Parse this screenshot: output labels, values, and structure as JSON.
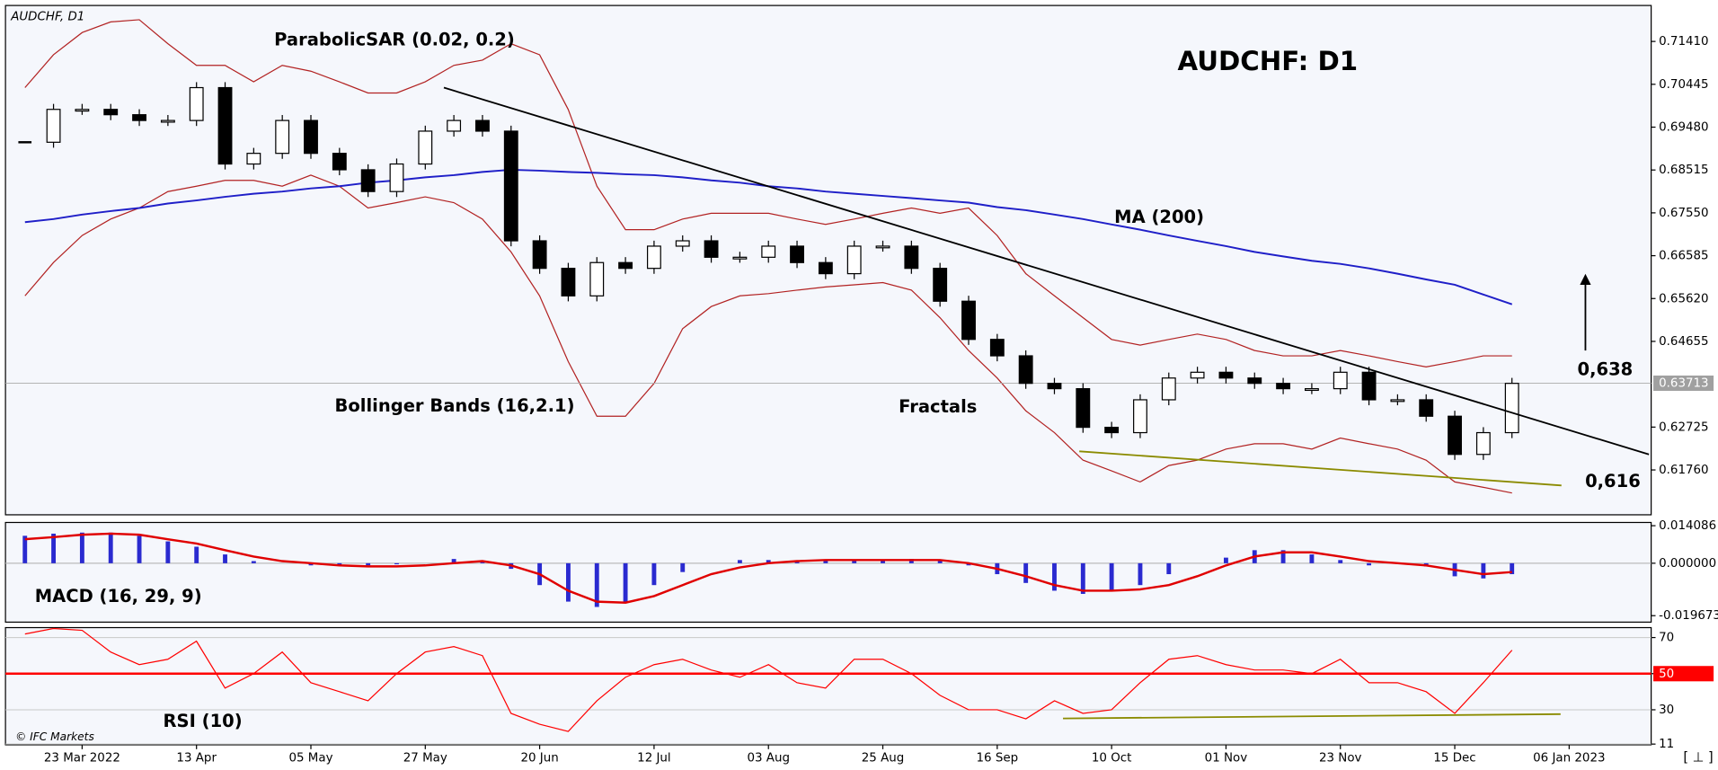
{
  "chart_data": [
    {
      "type": "candlestick",
      "symbol": "AUDCHF, D1",
      "title": "AUDCHF: D1",
      "categories": [
        null,
        null,
        "23 Mar 2022",
        null,
        null,
        null,
        "13 Apr",
        null,
        null,
        null,
        "05 May",
        null,
        null,
        null,
        "27 May",
        null,
        null,
        null,
        "20 Jun",
        null,
        null,
        null,
        "12 Jul",
        null,
        null,
        null,
        "03 Aug",
        null,
        null,
        null,
        "25 Aug",
        null,
        null,
        null,
        "16 Sep",
        null,
        null,
        null,
        "10 Oct",
        null,
        null,
        null,
        "01 Nov",
        null,
        null,
        null,
        "23 Nov",
        null,
        null,
        null,
        "15 Dec",
        null,
        null,
        null,
        "06 Jan 2023",
        null
      ],
      "close": [
        0.6914,
        0.6988,
        0.6988,
        0.6976,
        0.6963,
        0.6963,
        0.7037,
        0.6865,
        0.6889,
        0.6963,
        0.6889,
        0.6852,
        0.6803,
        0.6865,
        0.6939,
        0.6963,
        0.6939,
        0.6692,
        0.663,
        0.6568,
        0.6643,
        0.663,
        0.668,
        0.6692,
        0.6655,
        0.6655,
        0.668,
        0.6643,
        0.6618,
        0.668,
        0.668,
        0.663,
        0.6556,
        0.647,
        0.6433,
        0.6371,
        0.6359,
        0.6272,
        0.626,
        0.6334,
        0.6383,
        0.6396,
        0.6383,
        0.6371,
        0.6359,
        0.6359,
        0.6396,
        0.6334,
        0.6334,
        0.6297,
        0.6211,
        0.626,
        0.6371,
        null,
        null,
        null
      ],
      "ma200": {
        "color": "#1f1fc8",
        "values": [
          0.6734,
          0.6741,
          0.6751,
          0.6759,
          0.6766,
          0.6776,
          0.6783,
          0.6791,
          0.6798,
          0.6803,
          0.681,
          0.6815,
          0.6823,
          0.6828,
          0.6835,
          0.684,
          0.6847,
          0.6852,
          0.685,
          0.6847,
          0.6845,
          0.6842,
          0.684,
          0.6835,
          0.6828,
          0.6823,
          0.6815,
          0.681,
          0.6803,
          0.6798,
          0.6793,
          0.6788,
          0.6783,
          0.6778,
          0.6768,
          0.6761,
          0.6751,
          0.6741,
          0.6729,
          0.6717,
          0.6704,
          0.6692,
          0.668,
          0.6667,
          0.6657,
          0.6647,
          0.664,
          0.663,
          0.6618,
          0.6605,
          0.6593,
          0.6571,
          0.6549,
          null,
          null,
          null
        ]
      },
      "bollinger_upper": {
        "color": "#b22222",
        "values": [
          0.7037,
          0.7111,
          0.7161,
          0.7185,
          0.719,
          0.7136,
          0.7087,
          0.7087,
          0.705,
          0.7087,
          0.7074,
          0.705,
          0.7025,
          0.7025,
          0.705,
          0.7087,
          0.7099,
          0.7136,
          0.7111,
          0.6988,
          0.6815,
          0.6717,
          0.6717,
          0.6741,
          0.6754,
          0.6754,
          0.6754,
          0.6741,
          0.6729,
          0.6741,
          0.6754,
          0.6766,
          0.6754,
          0.6766,
          0.6704,
          0.6618,
          0.6568,
          0.6519,
          0.647,
          0.6457,
          0.647,
          0.6482,
          0.647,
          0.6445,
          0.6433,
          0.6433,
          0.6445,
          0.6433,
          0.642,
          0.6408,
          0.642,
          0.6433,
          0.6433,
          null,
          null,
          null
        ]
      },
      "bollinger_lower": {
        "color": "#b22222",
        "values": [
          0.6568,
          0.6643,
          0.6704,
          0.6741,
          0.6766,
          0.6803,
          0.6815,
          0.6828,
          0.6828,
          0.6815,
          0.684,
          0.6815,
          0.6766,
          0.6778,
          0.6791,
          0.6778,
          0.6741,
          0.6667,
          0.6568,
          0.642,
          0.6297,
          0.6297,
          0.6371,
          0.6494,
          0.6544,
          0.6568,
          0.6573,
          0.6581,
          0.6588,
          0.6593,
          0.6598,
          0.6581,
          0.6519,
          0.6445,
          0.6383,
          0.6309,
          0.626,
          0.6198,
          0.6174,
          0.6149,
          0.6186,
          0.6198,
          0.6223,
          0.6235,
          0.6235,
          0.6223,
          0.6248,
          0.6235,
          0.6223,
          0.6198,
          0.6149,
          0.6137,
          0.6124,
          null,
          null,
          null
        ]
      },
      "trend_lines": [
        {
          "x": [
            14.65,
            56.79
          ],
          "y": [
            0.7037,
            0.6211
          ],
          "color": "#000000"
        },
        {
          "x": [
            36.87,
            53.73
          ],
          "y": [
            0.6218,
            0.6141
          ],
          "color": "#8b8b00"
        }
      ],
      "ylim": [
        0.6075,
        0.7222
      ],
      "yticks": [
        {
          "value": 0.6176,
          "label": "0.61760"
        },
        {
          "value": 0.62725,
          "label": "0.62725"
        },
        {
          "value": 0.64655,
          "label": "0.64655"
        },
        {
          "value": 0.6562,
          "label": "0.65620"
        },
        {
          "value": 0.66585,
          "label": "0.66585"
        },
        {
          "value": 0.6755,
          "label": "0.67550"
        },
        {
          "value": 0.68515,
          "label": "0.68515"
        },
        {
          "value": 0.6948,
          "label": "0.69480"
        },
        {
          "value": 0.70445,
          "label": "0.70445"
        },
        {
          "value": 0.7141,
          "label": "0.71410"
        }
      ],
      "last_price": {
        "value": 0.63713,
        "label": "0.63713"
      },
      "annotations": [
        "ParabolicSAR (0.02, 0.2)",
        "MA (200)",
        "Bollinger Bands (16,2.1)",
        "Fractals",
        "0,638",
        "0,616"
      ],
      "footer": "[ ⊥ ]"
    },
    {
      "type": "macd",
      "label": "MACD (16, 29, 9)",
      "color": "#2a2ad0",
      "signal_color": "#e00000",
      "values": [
        0.0103,
        0.0111,
        0.0115,
        0.0115,
        0.0103,
        0.0082,
        0.0062,
        0.0033,
        0.0008,
        0,
        -0.0008,
        -0.0008,
        -0.0008,
        -0.0004,
        0,
        0.0016,
        0.0008,
        -0.0021,
        -0.0082,
        -0.0144,
        -0.0164,
        -0.0144,
        -0.0082,
        -0.0033,
        0,
        0.0012,
        0.0012,
        0.0008,
        0.0008,
        0.0008,
        0.0012,
        0.0016,
        0.0012,
        -0.0008,
        -0.0041,
        -0.0074,
        -0.0103,
        -0.0115,
        -0.0103,
        -0.0082,
        -0.0041,
        0,
        0.0021,
        0.0049,
        0.0049,
        0.0033,
        0.0012,
        -0.0008,
        0,
        -0.0012,
        -0.0049,
        -0.0057,
        -0.0041,
        null,
        null,
        null
      ],
      "signal": [
        0.009,
        0.0098,
        0.0107,
        0.0111,
        0.0107,
        0.009,
        0.0074,
        0.0049,
        0.0025,
        0.0008,
        0,
        -0.0008,
        -0.0012,
        -0.0012,
        -0.0008,
        0,
        0.0008,
        -0.0008,
        -0.0041,
        -0.0103,
        -0.0144,
        -0.0148,
        -0.0123,
        -0.0082,
        -0.0041,
        -0.0016,
        0,
        0.0008,
        0.0012,
        0.0012,
        0.0012,
        0.0012,
        0.0012,
        0,
        -0.0021,
        -0.0049,
        -0.0082,
        -0.0103,
        -0.0103,
        -0.0098,
        -0.0082,
        -0.0049,
        -0.0008,
        0.0025,
        0.0041,
        0.0041,
        0.0025,
        0.0008,
        0,
        -0.0008,
        -0.0025,
        -0.0041,
        -0.0033,
        null,
        null,
        null
      ],
      "ylim": [
        -0.0221,
        0.0153
      ],
      "yticks": [
        {
          "value": -0.019673,
          "label": "-0.019673"
        },
        {
          "value": 0,
          "label": "0.000000"
        },
        {
          "value": 0.014086,
          "label": "0.014086"
        }
      ]
    },
    {
      "type": "rsi",
      "label": "RSI (10)",
      "credit": "© IFC Markets",
      "color": "#ff0000",
      "values": [
        72,
        75,
        74,
        62,
        55,
        58,
        68,
        42,
        50,
        62,
        45,
        40,
        35,
        50,
        62,
        65,
        60,
        28,
        22,
        18,
        35,
        48,
        55,
        58,
        52,
        48,
        55,
        45,
        42,
        58,
        58,
        50,
        38,
        30,
        30,
        25,
        35,
        28,
        30,
        45,
        58,
        60,
        55,
        52,
        52,
        50,
        58,
        45,
        45,
        40,
        28,
        45,
        63,
        null,
        null,
        null
      ],
      "reference_line": {
        "value": 50,
        "color": "#ff0000"
      },
      "trend_lines": [
        {
          "x": [
            36.3,
            53.7
          ],
          "y": [
            25.2,
            27.6
          ],
          "color": "#8b8b00"
        }
      ],
      "ylim": [
        10.6,
        75.5
      ],
      "yticks": [
        11,
        30,
        50,
        70
      ]
    }
  ]
}
